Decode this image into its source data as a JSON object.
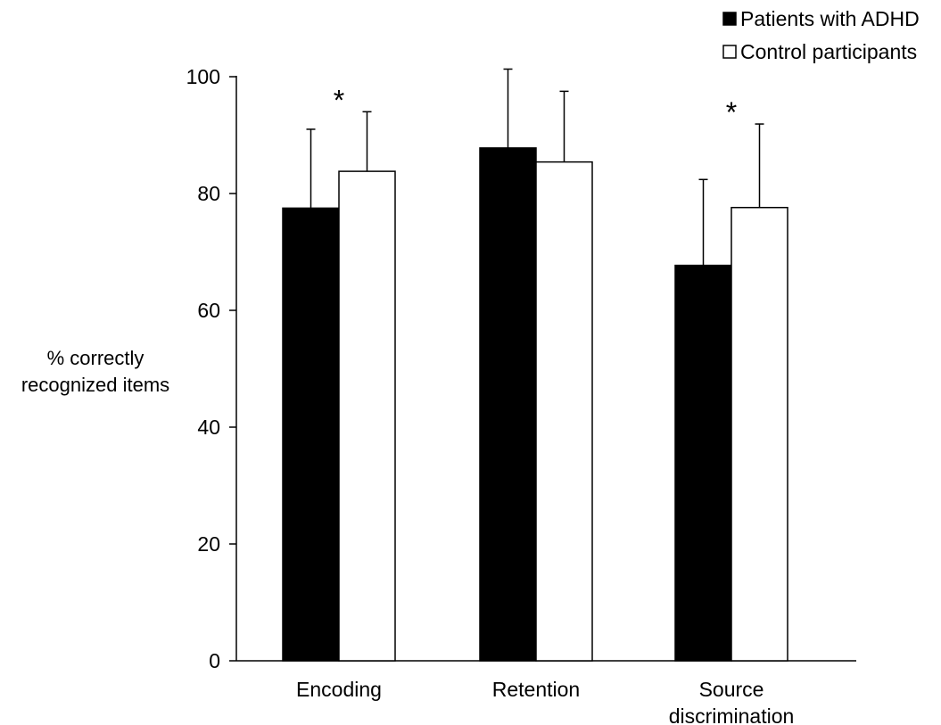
{
  "chart_data": {
    "type": "bar",
    "categories": [
      [
        "Encoding"
      ],
      [
        "Retention"
      ],
      [
        "Source",
        "discrimination"
      ]
    ],
    "series": [
      {
        "name": "Patients with ADHD",
        "color": "#000000",
        "values": [
          77.5,
          87.8,
          67.7
        ],
        "errors": [
          13.5,
          13.5,
          14.7
        ]
      },
      {
        "name": "Control participants",
        "color": "#ffffff",
        "values": [
          83.8,
          85.4,
          77.6
        ],
        "errors": [
          10.2,
          12.1,
          14.3
        ]
      }
    ],
    "significance": [
      "*",
      "",
      "*"
    ],
    "ylabel": [
      "% correctly",
      "recognized items"
    ],
    "xlabel": "",
    "ylim": [
      0,
      100
    ],
    "yticks": [
      0,
      20,
      40,
      60,
      80,
      100
    ],
    "grid": false,
    "legend_position": "top-right"
  }
}
